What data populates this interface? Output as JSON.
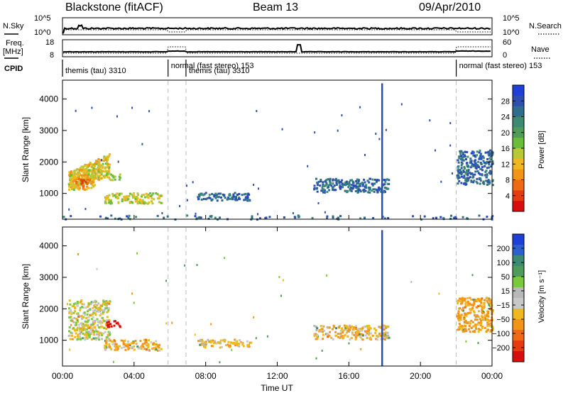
{
  "header": {
    "radar": "Blackstone (fitACF)",
    "beam": "Beam 13",
    "date": "09/Apr/2010"
  },
  "top_panels": {
    "nsky_label": "N.Sky",
    "nsearch_label": "N.Search",
    "nsky_ticks": [
      "10^5",
      "10^0"
    ],
    "nsearch_ticks": [
      "10^5",
      "10^0"
    ],
    "freq_label_1": "Freq.",
    "freq_label_2": "[MHz]",
    "freq_ticks": [
      "18",
      "8"
    ],
    "nave_label": "Nave",
    "nave_ticks": [
      "60",
      "0"
    ],
    "cpid_label": "CPID"
  },
  "modes": [
    {
      "label": "themis (tau) 3310",
      "start": 0.0,
      "end": 5.9
    },
    {
      "label": "normal (fast stereo) 153",
      "start": 5.9,
      "end": 6.9
    },
    {
      "label": "themis (tau) 3310",
      "start": 6.9,
      "end": 22.0
    },
    {
      "label": "normal (fast stereo) 153",
      "start": 22.0,
      "end": 24.0
    }
  ],
  "chart_data": [
    {
      "type": "heatmap",
      "panel": "power",
      "ylabel": "Slant Range [km]",
      "xlabel": "",
      "xlim": [
        0,
        24
      ],
      "ylim": [
        180,
        4600
      ],
      "yticks": [
        1000,
        2000,
        3000,
        4000
      ],
      "ytick_labels": [
        "1000",
        "2000",
        "3000",
        "4000"
      ],
      "colorbar": {
        "label": "Power [dB]",
        "ticks": [
          "4",
          "8",
          "12",
          "16",
          "20",
          "24",
          "28"
        ],
        "colors": [
          "#1f3fd6",
          "#2d4fb0",
          "#2e6e8c",
          "#3d8a72",
          "#4f9c5a",
          "#6cbc3c",
          "#b8c838",
          "#f0b820",
          "#f29418",
          "#ee6a14",
          "#e43c10",
          "#d80e0e"
        ]
      },
      "features": [
        {
          "t0": 0.3,
          "t1": 2.6,
          "r0": 1050,
          "r1": 2300,
          "level": 0.6,
          "note": "main echo band, rising range"
        },
        {
          "t0": 0.4,
          "t1": 1.8,
          "r0": 1150,
          "r1": 1650,
          "level": 0.95,
          "note": "peak power region"
        },
        {
          "t0": 2.3,
          "t1": 5.5,
          "r0": 700,
          "r1": 1050,
          "level": 0.55
        },
        {
          "t0": 2.4,
          "t1": 3.2,
          "r0": 1450,
          "r1": 1650,
          "level": 0.55
        },
        {
          "t0": 7.5,
          "t1": 10.5,
          "r0": 800,
          "r1": 1050,
          "level": 0.15
        },
        {
          "t0": 14.0,
          "t1": 18.2,
          "r0": 1050,
          "r1": 1500,
          "level": 0.15
        },
        {
          "t0": 22.0,
          "t1": 24.0,
          "r0": 1300,
          "r1": 2400,
          "level": 0.15
        },
        {
          "t0": 0.0,
          "t1": 24.0,
          "r0": 200,
          "r1": 330,
          "level": 0.15,
          "note": "near-range ground scatter"
        }
      ],
      "spike": {
        "t": 17.85,
        "r0": 190,
        "r1": 4500
      }
    },
    {
      "type": "heatmap",
      "panel": "velocity",
      "ylabel": "Slant Range [km]",
      "xlabel": "Time UT",
      "xlim": [
        0,
        24
      ],
      "ylim": [
        180,
        4600
      ],
      "xticks": [
        "00:00",
        "04:00",
        "08:00",
        "12:00",
        "16:00",
        "20:00",
        "00:00"
      ],
      "yticks": [
        1000,
        2000,
        3000,
        4000
      ],
      "ytick_labels": [
        "1000",
        "2000",
        "3000",
        "4000"
      ],
      "colorbar": {
        "label": "Velocity [m s⁻¹]",
        "ticks": [
          "200",
          "100",
          "50",
          "15",
          "−15",
          "−50",
          "−100",
          "−200"
        ],
        "colors": [
          "#1f3fd6",
          "#2d5fcf",
          "#3d8a72",
          "#4f9c5a",
          "#7cc83c",
          "#b8b8b8",
          "#c8c8c8",
          "#f0b820",
          "#f29418",
          "#ee6a14",
          "#e43c10",
          "#d80e0e"
        ]
      },
      "features": [
        {
          "t0": 0.3,
          "t1": 2.6,
          "r0": 1050,
          "r1": 2300,
          "velocity": 0,
          "note": "mostly near-zero (grey) velocities"
        },
        {
          "t0": 2.4,
          "t1": 3.2,
          "r0": 1450,
          "r1": 1650,
          "velocity": -200
        },
        {
          "t0": 2.3,
          "t1": 5.5,
          "r0": 700,
          "r1": 1050,
          "velocity": -30
        },
        {
          "t0": 7.5,
          "t1": 10.5,
          "r0": 800,
          "r1": 1050,
          "velocity": -20
        },
        {
          "t0": 14.0,
          "t1": 18.2,
          "r0": 1050,
          "r1": 1500,
          "velocity": -20
        },
        {
          "t0": 22.0,
          "t1": 24.0,
          "r0": 1300,
          "r1": 2400,
          "velocity": -40
        }
      ],
      "spike": {
        "t": 17.85,
        "r0": 190,
        "r1": 4500
      }
    }
  ]
}
